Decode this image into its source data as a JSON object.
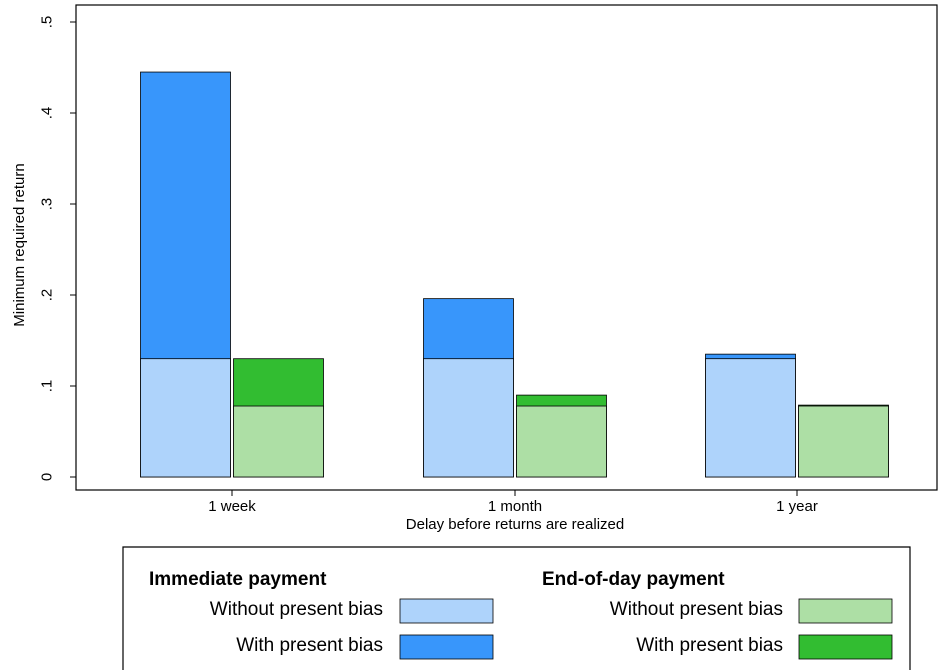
{
  "chart_data": {
    "type": "bar",
    "title": "",
    "xlabel": "Delay before returns are realized",
    "ylabel": "Minimum required return",
    "ylim": [
      0,
      0.5
    ],
    "yticks": [
      0,
      0.1,
      0.2,
      0.3,
      0.4,
      0.5
    ],
    "ytick_labels": [
      "0",
      ".1",
      ".2",
      ".3",
      ".4",
      ".5"
    ],
    "categories": [
      "1 week",
      "1 month",
      "1 year"
    ],
    "grid": false,
    "stacked_within_group": true,
    "groups": [
      {
        "name": "Immediate payment",
        "series": [
          {
            "name": "Without present bias",
            "color": "#aed3fb",
            "values": [
              0.13,
              0.13,
              0.13
            ]
          },
          {
            "name": "With present bias",
            "color": "#3896fb",
            "values": [
              0.445,
              0.196,
              0.135
            ]
          }
        ]
      },
      {
        "name": "End-of-day payment",
        "series": [
          {
            "name": "Without present bias",
            "color": "#addfa5",
            "values": [
              0.078,
              0.078,
              0.078
            ]
          },
          {
            "name": "With present bias",
            "color": "#32bd31",
            "values": [
              0.13,
              0.09,
              0.079
            ]
          }
        ]
      }
    ],
    "legend": {
      "position": "bottom",
      "columns": [
        {
          "heading": "Immediate payment",
          "items": [
            {
              "label": "Without present bias",
              "color": "#aed3fb"
            },
            {
              "label": "With present bias",
              "color": "#3896fb"
            }
          ]
        },
        {
          "heading": "End-of-day payment",
          "items": [
            {
              "label": "Without present bias",
              "color": "#addfa5"
            },
            {
              "label": "With present bias",
              "color": "#32bd31"
            }
          ]
        }
      ]
    }
  }
}
